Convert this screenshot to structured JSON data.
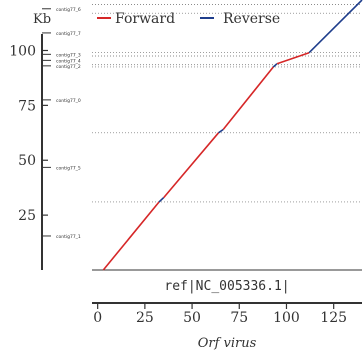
{
  "chart_data": {
    "type": "line",
    "ylabel_unit": "Kb",
    "xlabel_ref": "ref|NC_005336.1|",
    "xlabel_organism": "Orf virus",
    "legend": [
      {
        "name": "Forward",
        "color": "#d62728"
      },
      {
        "name": "Reverse",
        "color": "#1f3e8c"
      }
    ],
    "legend_placement": "top",
    "grid": "horizontal-dotted-at-contig-boundaries",
    "xlim": [
      -3,
      140
    ],
    "ylim": [
      0,
      123
    ],
    "x_ticks": [
      0,
      25,
      50,
      75,
      100,
      125
    ],
    "y_ticks": [
      25,
      50,
      75,
      100
    ],
    "contigs": [
      {
        "label": "contig77_1",
        "start": 0,
        "end": 31
      },
      {
        "label": "contig77_5",
        "start": 31,
        "end": 62.5
      },
      {
        "label": "contig77_0",
        "start": 62.5,
        "end": 92.5
      },
      {
        "label": "contig77_2",
        "start": 92.5,
        "end": 93.5
      },
      {
        "label": "contig77_4",
        "start": 93.5,
        "end": 97.5
      },
      {
        "label": "contig77_3",
        "start": 97.5,
        "end": 99
      },
      {
        "label": "contig77_7",
        "start": 99,
        "end": 117
      },
      {
        "label": "contig77_6",
        "start": 117,
        "end": 121
      }
    ],
    "series": [
      {
        "name": "Forward",
        "color": "#d62728",
        "x": [
          3,
          32.5
        ],
        "y": [
          0,
          31
        ]
      },
      {
        "name": "Reverse",
        "color": "#1f3e8c",
        "x": [
          32.5,
          35
        ],
        "y": [
          31,
          33
        ]
      },
      {
        "name": "Forward",
        "color": "#d62728",
        "x": [
          35,
          64
        ],
        "y": [
          33,
          62.5
        ]
      },
      {
        "name": "Reverse",
        "color": "#1f3e8c",
        "x": [
          64,
          66.5
        ],
        "y": [
          62.5,
          64
        ]
      },
      {
        "name": "Forward",
        "color": "#d62728",
        "x": [
          66.5,
          93
        ],
        "y": [
          64,
          92.5
        ]
      },
      {
        "name": "Reverse",
        "color": "#1f3e8c",
        "x": [
          93,
          95
        ],
        "y": [
          92.5,
          94
        ]
      },
      {
        "name": "Forward",
        "color": "#d62728",
        "x": [
          95,
          112
        ],
        "y": [
          94,
          99
        ]
      },
      {
        "name": "Reverse",
        "color": "#1f3e8c",
        "x": [
          112,
          140
        ],
        "y": [
          99,
          123
        ]
      }
    ]
  }
}
